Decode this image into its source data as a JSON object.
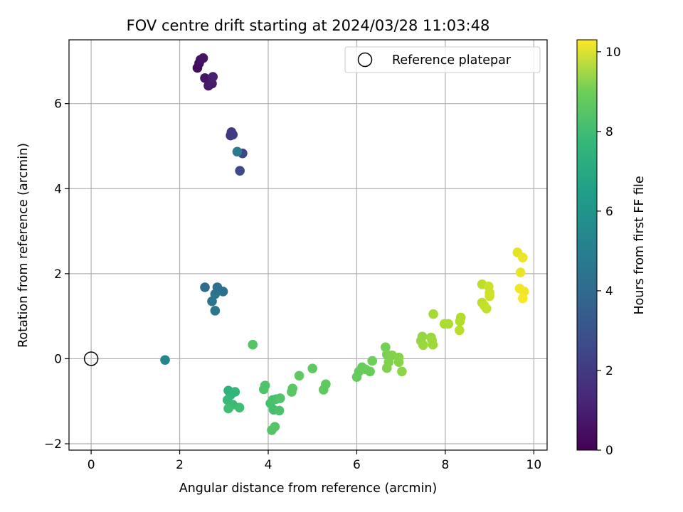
{
  "chart_data": {
    "type": "scatter",
    "title": "FOV centre drift starting at 2024/03/28 11:03:48",
    "xlabel": "Angular distance from reference (arcmin)",
    "ylabel": "Rotation from reference (arcmin)",
    "xlim": [
      -0.5,
      10.3
    ],
    "ylim": [
      -2.15,
      7.5
    ],
    "xticks": [
      0,
      2,
      4,
      6,
      8,
      10
    ],
    "yticks": [
      -2,
      0,
      2,
      4,
      6
    ],
    "grid": true,
    "legend": {
      "placement": "top-right",
      "entries": [
        "Reference platepar"
      ]
    },
    "reference_point": {
      "name": "Reference platepar",
      "x": 0,
      "y": 0
    },
    "colorbar": {
      "label": "Hours from first FF file",
      "colormap": "viridis",
      "range": [
        0,
        10.3
      ],
      "ticks": [
        0,
        2,
        4,
        6,
        8,
        10
      ]
    },
    "points": [
      {
        "x": 2.4,
        "y": 6.84,
        "c": 0.2
      },
      {
        "x": 2.44,
        "y": 6.95,
        "c": 0.3
      },
      {
        "x": 2.47,
        "y": 7.03,
        "c": 0.4
      },
      {
        "x": 2.53,
        "y": 7.07,
        "c": 0.5
      },
      {
        "x": 2.57,
        "y": 6.6,
        "c": 0.6
      },
      {
        "x": 2.65,
        "y": 6.42,
        "c": 0.7
      },
      {
        "x": 2.73,
        "y": 6.47,
        "c": 0.8
      },
      {
        "x": 2.75,
        "y": 6.63,
        "c": 0.9
      },
      {
        "x": 3.15,
        "y": 5.25,
        "c": 1.6
      },
      {
        "x": 3.17,
        "y": 5.33,
        "c": 1.7
      },
      {
        "x": 3.2,
        "y": 5.27,
        "c": 1.8
      },
      {
        "x": 3.42,
        "y": 4.83,
        "c": 2.2
      },
      {
        "x": 3.36,
        "y": 4.42,
        "c": 2.3
      },
      {
        "x": 3.3,
        "y": 4.87,
        "c": 4.3
      },
      {
        "x": 2.57,
        "y": 1.68,
        "c": 3.6
      },
      {
        "x": 2.85,
        "y": 1.68,
        "c": 3.7
      },
      {
        "x": 2.98,
        "y": 1.58,
        "c": 3.8
      },
      {
        "x": 2.8,
        "y": 1.52,
        "c": 3.9
      },
      {
        "x": 2.73,
        "y": 1.35,
        "c": 4.0
      },
      {
        "x": 2.8,
        "y": 1.13,
        "c": 4.1
      },
      {
        "x": 1.67,
        "y": -0.03,
        "c": 4.7
      },
      {
        "x": 3.1,
        "y": -0.75,
        "c": 6.6
      },
      {
        "x": 3.15,
        "y": -0.85,
        "c": 6.7
      },
      {
        "x": 3.25,
        "y": -0.78,
        "c": 6.8
      },
      {
        "x": 3.08,
        "y": -0.97,
        "c": 6.9
      },
      {
        "x": 3.2,
        "y": -1.08,
        "c": 7.0
      },
      {
        "x": 3.1,
        "y": -1.17,
        "c": 7.1
      },
      {
        "x": 3.35,
        "y": -1.15,
        "c": 7.1
      },
      {
        "x": 3.65,
        "y": 0.33,
        "c": 7.5
      },
      {
        "x": 3.93,
        "y": -0.63,
        "c": 7.4
      },
      {
        "x": 3.9,
        "y": -0.72,
        "c": 7.4
      },
      {
        "x": 4.05,
        "y": -1.05,
        "c": 7.2
      },
      {
        "x": 4.1,
        "y": -0.97,
        "c": 7.3
      },
      {
        "x": 4.18,
        "y": -0.95,
        "c": 7.3
      },
      {
        "x": 4.27,
        "y": -0.93,
        "c": 7.4
      },
      {
        "x": 4.12,
        "y": -1.2,
        "c": 7.2
      },
      {
        "x": 4.25,
        "y": -1.22,
        "c": 7.3
      },
      {
        "x": 4.08,
        "y": -1.68,
        "c": 7.5
      },
      {
        "x": 4.15,
        "y": -1.6,
        "c": 7.5
      },
      {
        "x": 4.55,
        "y": -0.7,
        "c": 7.6
      },
      {
        "x": 4.53,
        "y": -0.78,
        "c": 7.6
      },
      {
        "x": 4.7,
        "y": -0.4,
        "c": 7.7
      },
      {
        "x": 5.0,
        "y": -0.23,
        "c": 7.7
      },
      {
        "x": 5.25,
        "y": -0.73,
        "c": 7.7
      },
      {
        "x": 5.3,
        "y": -0.6,
        "c": 7.7
      },
      {
        "x": 6.0,
        "y": -0.43,
        "c": 7.8
      },
      {
        "x": 6.05,
        "y": -0.3,
        "c": 7.8
      },
      {
        "x": 6.12,
        "y": -0.2,
        "c": 7.9
      },
      {
        "x": 6.2,
        "y": -0.25,
        "c": 7.9
      },
      {
        "x": 6.3,
        "y": -0.3,
        "c": 7.9
      },
      {
        "x": 6.35,
        "y": -0.05,
        "c": 8.0
      },
      {
        "x": 6.65,
        "y": 0.27,
        "c": 8.1
      },
      {
        "x": 6.68,
        "y": 0.1,
        "c": 8.2
      },
      {
        "x": 6.75,
        "y": 0.05,
        "c": 8.2
      },
      {
        "x": 6.8,
        "y": 0.08,
        "c": 8.3
      },
      {
        "x": 6.72,
        "y": -0.08,
        "c": 8.3
      },
      {
        "x": 6.68,
        "y": -0.22,
        "c": 8.3
      },
      {
        "x": 6.95,
        "y": 0.03,
        "c": 8.4
      },
      {
        "x": 6.95,
        "y": -0.08,
        "c": 8.4
      },
      {
        "x": 7.02,
        "y": -0.3,
        "c": 8.5
      },
      {
        "x": 7.48,
        "y": 0.52,
        "c": 8.6
      },
      {
        "x": 7.45,
        "y": 0.42,
        "c": 8.6
      },
      {
        "x": 7.5,
        "y": 0.32,
        "c": 8.7
      },
      {
        "x": 7.68,
        "y": 0.5,
        "c": 8.7
      },
      {
        "x": 7.7,
        "y": 0.43,
        "c": 8.8
      },
      {
        "x": 7.72,
        "y": 0.33,
        "c": 8.8
      },
      {
        "x": 7.73,
        "y": 1.05,
        "c": 8.9
      },
      {
        "x": 7.98,
        "y": 0.82,
        "c": 9.0
      },
      {
        "x": 8.07,
        "y": 0.82,
        "c": 9.0
      },
      {
        "x": 8.35,
        "y": 0.97,
        "c": 9.1
      },
      {
        "x": 8.33,
        "y": 0.88,
        "c": 9.1
      },
      {
        "x": 8.32,
        "y": 0.67,
        "c": 9.2
      },
      {
        "x": 8.83,
        "y": 1.75,
        "c": 9.3
      },
      {
        "x": 8.83,
        "y": 1.32,
        "c": 9.3
      },
      {
        "x": 8.88,
        "y": 1.25,
        "c": 9.4
      },
      {
        "x": 8.93,
        "y": 1.18,
        "c": 9.4
      },
      {
        "x": 8.98,
        "y": 1.7,
        "c": 9.5
      },
      {
        "x": 9.0,
        "y": 1.55,
        "c": 9.5
      },
      {
        "x": 9.0,
        "y": 1.47,
        "c": 9.6
      },
      {
        "x": 9.63,
        "y": 2.5,
        "c": 9.9
      },
      {
        "x": 9.75,
        "y": 2.38,
        "c": 10.0
      },
      {
        "x": 9.7,
        "y": 2.03,
        "c": 10.0
      },
      {
        "x": 9.68,
        "y": 1.65,
        "c": 10.1
      },
      {
        "x": 9.78,
        "y": 1.58,
        "c": 10.1
      },
      {
        "x": 9.75,
        "y": 1.42,
        "c": 10.2
      }
    ]
  }
}
